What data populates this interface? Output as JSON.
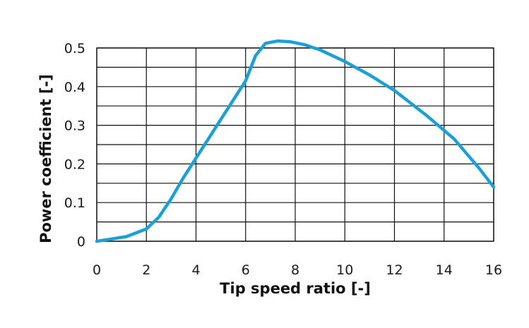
{
  "chart_data": {
    "type": "line",
    "title": "",
    "xlabel": "Tip speed ratio [-]",
    "ylabel": "Power coefficient [-]",
    "xlim": [
      0,
      16
    ],
    "ylim": [
      0,
      0.5
    ],
    "x_ticks": [
      "0",
      "2",
      "4",
      "6",
      "8",
      "10",
      "12",
      "14",
      "16"
    ],
    "y_ticks": [
      "0",
      "0.1",
      "0.2",
      "0.3",
      "0.4",
      "0.5"
    ],
    "grid": true,
    "legend": "none",
    "line_color": "#1aa0d8",
    "series": [
      {
        "x": [
          0,
          0.5,
          1.2,
          2.0,
          2.5,
          3.0,
          3.5,
          4.0,
          4.5,
          5.0,
          5.5,
          6.0,
          6.4,
          6.8,
          7.3,
          7.8,
          8.4,
          9.0,
          10.0,
          11.0,
          12.0,
          13.3,
          14.4,
          15.4,
          16.0
        ],
        "y": [
          0,
          0.005,
          0.012,
          0.032,
          0.062,
          0.11,
          0.165,
          0.215,
          0.265,
          0.315,
          0.365,
          0.415,
          0.48,
          0.512,
          0.518,
          0.516,
          0.508,
          0.495,
          0.465,
          0.43,
          0.39,
          0.325,
          0.265,
          0.19,
          0.14
        ]
      }
    ]
  }
}
